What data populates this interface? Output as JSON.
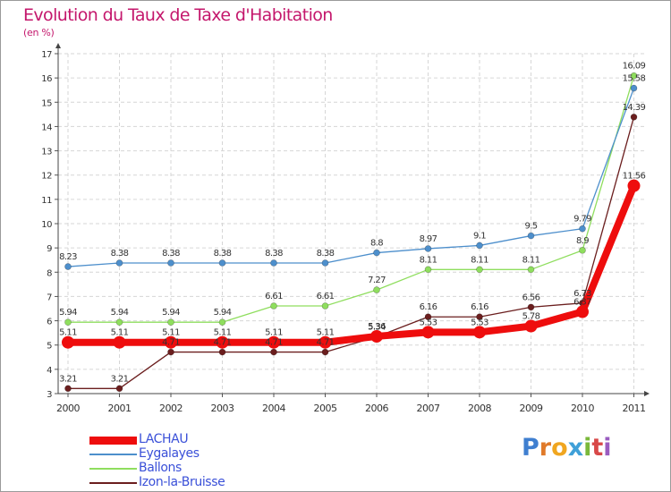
{
  "title": "Evolution du Taux de Taxe d'Habitation",
  "subtitle": "(en %)",
  "logo": [
    "P",
    "r",
    "o",
    "x",
    "i",
    "t",
    "i"
  ],
  "chart_data": {
    "type": "line",
    "title": "Evolution du Taux de Taxe d'Habitation",
    "subtitle": "(en %)",
    "categories": [
      "2000",
      "2001",
      "2002",
      "2003",
      "2004",
      "2005",
      "2006",
      "2007",
      "2008",
      "2009",
      "2010",
      "2011"
    ],
    "ylim": [
      3,
      17
    ],
    "yticks": [
      "3",
      "4",
      "5",
      "6",
      "7",
      "8",
      "9",
      "10",
      "11",
      "12",
      "13",
      "14",
      "15",
      "16",
      "17"
    ],
    "grid": true,
    "legend_position": "bottom-left",
    "series": [
      {
        "name": "LACHAU",
        "color": "#ee0d0d",
        "values": [
          5.11,
          5.11,
          5.11,
          5.11,
          5.11,
          5.11,
          5.36,
          5.53,
          5.53,
          5.78,
          6.37,
          11.56
        ],
        "labels": [
          "5.11",
          "5.11",
          "5.11",
          "5.11",
          "5.11",
          "5.11",
          "5.36",
          "5.53",
          "5.53",
          "5.78",
          "6.37",
          "11.56"
        ]
      },
      {
        "name": "Eygalayes",
        "color": "#4d8fcc",
        "values": [
          8.23,
          8.38,
          8.38,
          8.38,
          8.38,
          8.38,
          8.8,
          8.97,
          9.1,
          9.5,
          9.79,
          15.58
        ],
        "labels": [
          "8.23",
          "8.38",
          "8.38",
          "8.38",
          "8.38",
          "8.38",
          "8.8",
          "8.97",
          "9.1",
          "9.5",
          "9.79",
          "15.58"
        ]
      },
      {
        "name": "Ballons",
        "color": "#8fde5e",
        "values": [
          5.94,
          5.94,
          5.94,
          5.94,
          6.61,
          6.61,
          7.27,
          8.11,
          8.11,
          8.11,
          8.9,
          16.09
        ],
        "labels": [
          "5.94",
          "5.94",
          "5.94",
          "5.94",
          "6.61",
          "6.61",
          "7.27",
          "8.11",
          "8.11",
          "8.11",
          "8.9",
          "16.09"
        ]
      },
      {
        "name": "Izon-la-Bruisse",
        "color": "#6b1e1e",
        "values": [
          3.21,
          3.21,
          4.71,
          4.71,
          4.71,
          4.71,
          5.34,
          6.16,
          6.16,
          6.56,
          6.73,
          14.39
        ],
        "labels": [
          "3.21",
          "3.21",
          "4.71",
          "4.71",
          "4.71",
          "4.71",
          "5.34",
          "6.16",
          "6.16",
          "6.56",
          "6.73",
          "14.39"
        ]
      }
    ]
  }
}
